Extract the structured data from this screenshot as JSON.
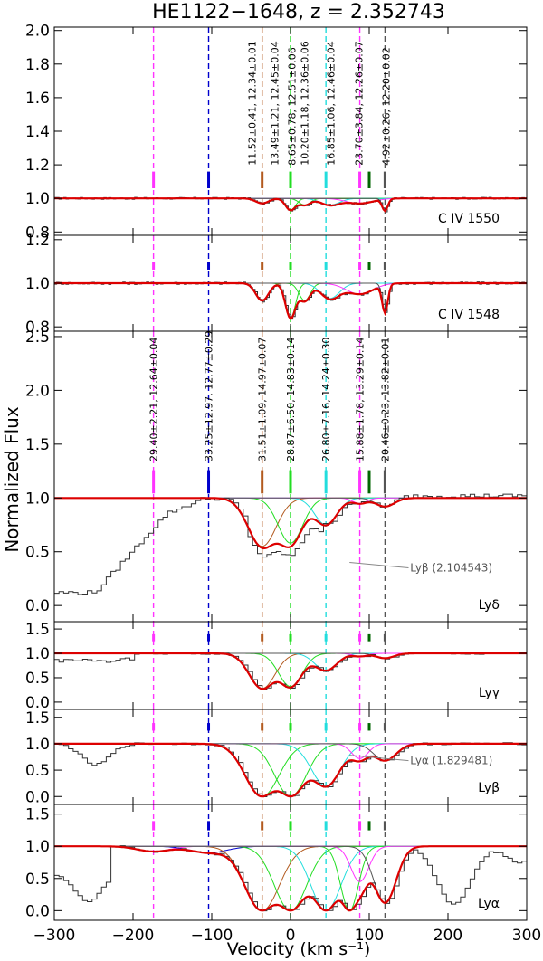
{
  "chart_data": {
    "type": "line",
    "title": "HE1122−1648, z = 2.352743",
    "xlabel": "Velocity (km s⁻¹)",
    "ylabel": "Normalized Flux",
    "xlim": [
      -300,
      300
    ],
    "xticks": [
      "−300",
      "−200",
      "−100",
      "0",
      "100",
      "200",
      "300"
    ],
    "component_velocities": [
      -174,
      -104,
      -36,
      0,
      45,
      88,
      100,
      120
    ],
    "component_colors": [
      "#ff33ff",
      "#0000cc",
      "#b35a1f",
      "#22dd22",
      "#22dddd",
      "#ff33ff",
      "#006600",
      "#555555"
    ],
    "fit_color": "#dd0000",
    "panels": [
      {
        "id": "civ1550",
        "label": "C IV 1550",
        "ylim": [
          0.78,
          2.02
        ],
        "yticks": [
          "0.8",
          "1.0",
          "1.2",
          "1.4",
          "1.6",
          "1.8",
          "2.0"
        ],
        "ytick_values": [
          0.8,
          1.0,
          1.2,
          1.4,
          1.6,
          1.8,
          2.0
        ],
        "tick_y": 1.11,
        "annotations": [
          "11.52±0.41, 12.34±0.01",
          "13.49±1.21, 12.45±0.04",
          "8.65±0.78, 12.51±0.06",
          "10.20±1.18, 12.36±0.06",
          "16.85±1.06, 12.46±0.04",
          "23.70±3.84, 12.26±0.07",
          "4.92±0.26, 12.20±0.02"
        ],
        "annotation_velocities": [
          -49,
          -20,
          2,
          18,
          51,
          87,
          121
        ],
        "lines": [
          {
            "center": -36,
            "b": 11.5,
            "depth": 0.03,
            "color": "#b35a1f"
          },
          {
            "center": 0,
            "b": 9,
            "depth": 0.07,
            "color": "#22dd22"
          },
          {
            "center": 18,
            "b": 10,
            "depth": 0.04,
            "color": "#22dd22"
          },
          {
            "center": 50,
            "b": 17,
            "depth": 0.04,
            "color": "#22dddd"
          },
          {
            "center": 88,
            "b": 24,
            "depth": 0.03,
            "color": "#ff33ff"
          },
          {
            "center": 120,
            "b": 5,
            "depth": 0.07,
            "color": "#555555"
          }
        ]
      },
      {
        "id": "civ1548",
        "label": "C IV 1548",
        "ylim": [
          0.78,
          1.22
        ],
        "yticks": [
          "0.8",
          "1.0",
          "1.2"
        ],
        "ytick_values": [
          0.8,
          1.0,
          1.2
        ],
        "tick_y": 1.08,
        "lines": [
          {
            "center": -36,
            "b": 11.5,
            "depth": 0.08,
            "color": "#b35a1f"
          },
          {
            "center": 0,
            "b": 9,
            "depth": 0.16,
            "color": "#22dd22"
          },
          {
            "center": 18,
            "b": 10,
            "depth": 0.08,
            "color": "#22dd22"
          },
          {
            "center": 50,
            "b": 17,
            "depth": 0.07,
            "color": "#22dddd"
          },
          {
            "center": 88,
            "b": 24,
            "depth": 0.05,
            "color": "#ff33ff"
          },
          {
            "center": 120,
            "b": 5,
            "depth": 0.13,
            "color": "#555555"
          }
        ]
      },
      {
        "id": "lydelta",
        "label": "Lyδ",
        "ylim": [
          -0.15,
          2.55
        ],
        "yticks": [
          "0.0",
          "0.5",
          "1.0",
          "1.5",
          "2.0",
          "2.5"
        ],
        "ytick_values": [
          0,
          0.5,
          1.0,
          1.5,
          2.0,
          2.5
        ],
        "tick_y": 1.15,
        "annotations": [
          "29.40±2.21, 12.64±0.04",
          "33.25±12.97, 12.77±0.29",
          "31.51±1.09, 14.97±0.07",
          "28.87±6.50, 14.83±0.14",
          "26.80±7.16, 14.24±0.30",
          "15.88±1.78, 13.29±0.14",
          "20.46±0.23, 13.82±0.01"
        ],
        "annotation_velocities": [
          -174,
          -104,
          -36,
          0,
          45,
          88,
          120
        ],
        "blend_label": "Lyβ (2.104543)",
        "lines": [
          {
            "center": -36,
            "b": 25,
            "depth": 0.45,
            "color": "#b35a1f"
          },
          {
            "center": 0,
            "b": 22,
            "depth": 0.42,
            "color": "#22dd22"
          },
          {
            "center": 45,
            "b": 20,
            "depth": 0.25,
            "color": "#22dddd"
          },
          {
            "center": 88,
            "b": 13,
            "depth": 0.05,
            "color": "#ff33ff"
          },
          {
            "center": 120,
            "b": 17,
            "depth": 0.08,
            "color": "#555555"
          }
        ]
      },
      {
        "id": "lygamma",
        "label": "Lyγ",
        "ylim": [
          -0.15,
          1.65
        ],
        "yticks": [
          "0.0",
          "0.5",
          "1.0",
          "1.5"
        ],
        "ytick_values": [
          0,
          0.5,
          1.0,
          1.5
        ],
        "tick_y": 1.32,
        "lines": [
          {
            "center": -36,
            "b": 23,
            "depth": 0.72,
            "color": "#b35a1f"
          },
          {
            "center": 0,
            "b": 21,
            "depth": 0.68,
            "color": "#22dd22"
          },
          {
            "center": 45,
            "b": 20,
            "depth": 0.35,
            "color": "#22dddd"
          },
          {
            "center": 88,
            "b": 13,
            "depth": 0.06,
            "color": "#ff33ff"
          },
          {
            "center": 120,
            "b": 16,
            "depth": 0.1,
            "color": "#555555"
          }
        ]
      },
      {
        "id": "lybeta",
        "label": "Lyβ",
        "ylim": [
          -0.15,
          1.65
        ],
        "yticks": [
          "0.0",
          "0.5",
          "1.0",
          "1.5"
        ],
        "ytick_values": [
          0,
          0.5,
          1.0,
          1.5
        ],
        "tick_y": 1.32,
        "blend_label": "Lyα (1.829481)",
        "lines": [
          {
            "center": -36,
            "b": 30,
            "depth": 1.0,
            "color": "#22dd22"
          },
          {
            "center": 0,
            "b": 28,
            "depth": 1.0,
            "color": "#22dd22"
          },
          {
            "center": 45,
            "b": 26,
            "depth": 0.8,
            "color": "#22dddd"
          },
          {
            "center": 88,
            "b": 15,
            "depth": 0.28,
            "color": "#ff33ff"
          },
          {
            "center": 120,
            "b": 20,
            "depth": 0.32,
            "color": "#555555"
          }
        ]
      },
      {
        "id": "lyalpha",
        "label": "Lyα",
        "ylim": [
          -0.15,
          1.65
        ],
        "yticks": [
          "0.0",
          "0.5",
          "1.0",
          "1.5"
        ],
        "ytick_values": [
          0,
          0.5,
          1.0,
          1.5
        ],
        "tick_y": 1.32,
        "lines": [
          {
            "center": -174,
            "b": 29,
            "depth": 0.08,
            "color": "#ff33ff"
          },
          {
            "center": -104,
            "b": 33,
            "depth": 0.1,
            "color": "#0000cc"
          },
          {
            "center": -36,
            "b": 31,
            "depth": 1.0,
            "color": "#b35a1f"
          },
          {
            "center": 0,
            "b": 29,
            "depth": 1.0,
            "color": "#22dd22"
          },
          {
            "center": 45,
            "b": 27,
            "depth": 1.0,
            "color": "#22dddd"
          },
          {
            "center": 75,
            "b": 16,
            "depth": 1.0,
            "color": "#22dd22"
          },
          {
            "center": 88,
            "b": 16,
            "depth": 0.55,
            "color": "#ff33ff"
          },
          {
            "center": 120,
            "b": 20,
            "depth": 0.88,
            "color": "#555555"
          }
        ]
      }
    ]
  }
}
